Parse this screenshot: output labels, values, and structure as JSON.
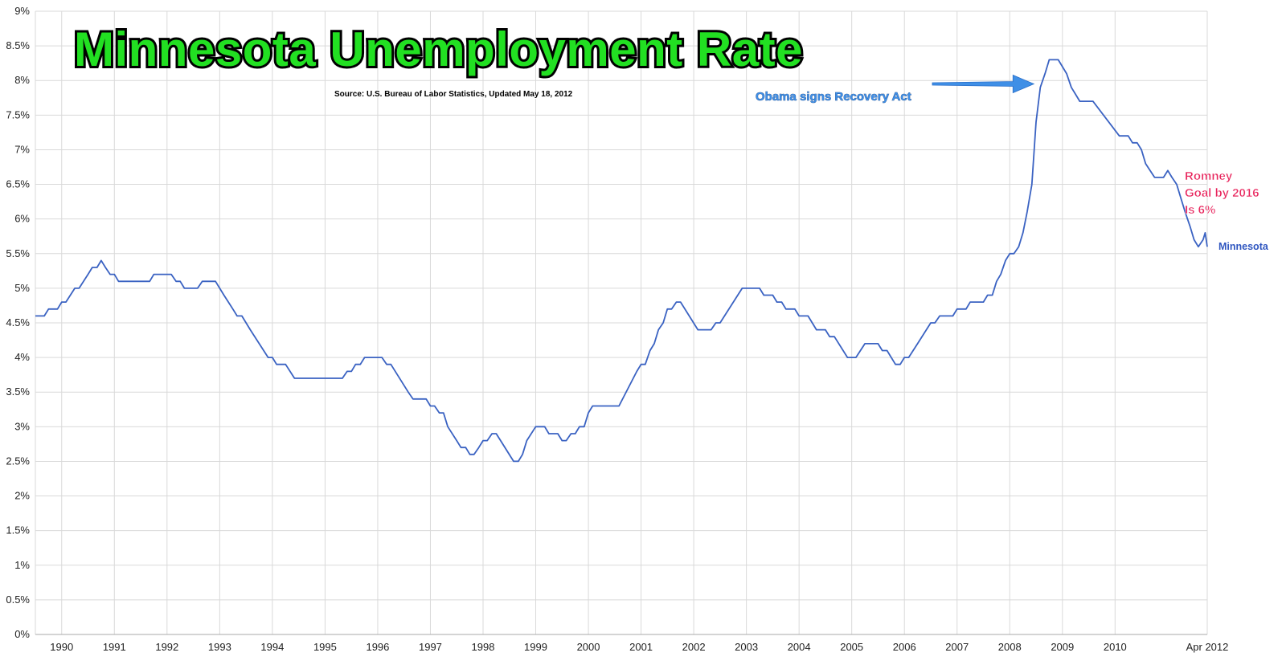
{
  "chart_data": {
    "type": "line",
    "title": "Minnesota Unemployment Rate",
    "subtitle": "Source:  U.S. Bureau of Labor Statistics, Updated May 18, 2012",
    "xlabel": "",
    "ylabel": "",
    "ylim": [
      0,
      9
    ],
    "y_ticks": [
      "0%",
      "0.5%",
      "1%",
      "1.5%",
      "2%",
      "2.5%",
      "3%",
      "3.5%",
      "4%",
      "4.5%",
      "5%",
      "5.5%",
      "6%",
      "6.5%",
      "7%",
      "7.5%",
      "8%",
      "8.5%",
      "9%"
    ],
    "x_ticks": [
      {
        "label": "1990",
        "x": 1990.5
      },
      {
        "label": "1991",
        "x": 1991.5
      },
      {
        "label": "1992",
        "x": 1992.5
      },
      {
        "label": "1993",
        "x": 1993.5
      },
      {
        "label": "1994",
        "x": 1994.5
      },
      {
        "label": "1995",
        "x": 1995.5
      },
      {
        "label": "1996",
        "x": 1996.5
      },
      {
        "label": "1997",
        "x": 1997.5
      },
      {
        "label": "1998",
        "x": 1998.5
      },
      {
        "label": "1999",
        "x": 1999.5
      },
      {
        "label": "2000",
        "x": 2000.5
      },
      {
        "label": "2001",
        "x": 2001.5
      },
      {
        "label": "2002",
        "x": 2002.5
      },
      {
        "label": "2003",
        "x": 2003.5
      },
      {
        "label": "2004",
        "x": 2004.5
      },
      {
        "label": "2005",
        "x": 2005.5
      },
      {
        "label": "2006",
        "x": 2006.5
      },
      {
        "label": "2007",
        "x": 2007.5
      },
      {
        "label": "2008",
        "x": 2008.5
      },
      {
        "label": "2009",
        "x": 2009.5
      },
      {
        "label": "2010",
        "x": 2010.5
      },
      {
        "label": "Apr 2012",
        "x": 2012.25
      }
    ],
    "x_range": [
      1990,
      2012.25
    ],
    "grid": true,
    "legend": "none",
    "series": [
      {
        "name": "Minnesota",
        "color": "#3a62c2",
        "points": [
          [
            1990.0,
            4.6
          ],
          [
            1990.17,
            4.6
          ],
          [
            1990.25,
            4.7
          ],
          [
            1990.42,
            4.7
          ],
          [
            1990.5,
            4.8
          ],
          [
            1990.58,
            4.8
          ],
          [
            1990.75,
            5.0
          ],
          [
            1990.83,
            5.0
          ],
          [
            1991.0,
            5.2
          ],
          [
            1991.08,
            5.3
          ],
          [
            1991.17,
            5.3
          ],
          [
            1991.25,
            5.4
          ],
          [
            1991.33,
            5.3
          ],
          [
            1991.42,
            5.2
          ],
          [
            1991.5,
            5.2
          ],
          [
            1991.58,
            5.1
          ],
          [
            1992.17,
            5.1
          ],
          [
            1992.25,
            5.2
          ],
          [
            1992.58,
            5.2
          ],
          [
            1992.67,
            5.1
          ],
          [
            1992.75,
            5.1
          ],
          [
            1992.83,
            5.0
          ],
          [
            1993.08,
            5.0
          ],
          [
            1993.17,
            5.1
          ],
          [
            1993.42,
            5.1
          ],
          [
            1993.58,
            4.9
          ],
          [
            1993.75,
            4.7
          ],
          [
            1993.83,
            4.6
          ],
          [
            1993.92,
            4.6
          ],
          [
            1994.08,
            4.4
          ],
          [
            1994.25,
            4.2
          ],
          [
            1994.42,
            4.0
          ],
          [
            1994.5,
            4.0
          ],
          [
            1994.58,
            3.9
          ],
          [
            1994.75,
            3.9
          ],
          [
            1994.92,
            3.7
          ],
          [
            1995.83,
            3.7
          ],
          [
            1995.92,
            3.8
          ],
          [
            1996.0,
            3.8
          ],
          [
            1996.08,
            3.9
          ],
          [
            1996.17,
            3.9
          ],
          [
            1996.25,
            4.0
          ],
          [
            1996.58,
            4.0
          ],
          [
            1996.67,
            3.9
          ],
          [
            1996.75,
            3.9
          ],
          [
            1997.08,
            3.5
          ],
          [
            1997.17,
            3.4
          ],
          [
            1997.42,
            3.4
          ],
          [
            1997.5,
            3.3
          ],
          [
            1997.58,
            3.3
          ],
          [
            1997.67,
            3.2
          ],
          [
            1997.75,
            3.2
          ],
          [
            1997.83,
            3.0
          ],
          [
            1998.0,
            2.8
          ],
          [
            1998.08,
            2.7
          ],
          [
            1998.17,
            2.7
          ],
          [
            1998.25,
            2.6
          ],
          [
            1998.33,
            2.6
          ],
          [
            1998.42,
            2.7
          ],
          [
            1998.5,
            2.8
          ],
          [
            1998.58,
            2.8
          ],
          [
            1998.67,
            2.9
          ],
          [
            1998.75,
            2.9
          ],
          [
            1999.08,
            2.5
          ],
          [
            1999.17,
            2.5
          ],
          [
            1999.25,
            2.6
          ],
          [
            1999.33,
            2.8
          ],
          [
            1999.5,
            3.0
          ],
          [
            1999.67,
            3.0
          ],
          [
            1999.75,
            2.9
          ],
          [
            1999.92,
            2.9
          ],
          [
            2000.0,
            2.8
          ],
          [
            2000.08,
            2.8
          ],
          [
            2000.17,
            2.9
          ],
          [
            2000.25,
            2.9
          ],
          [
            2000.33,
            3.0
          ],
          [
            2000.42,
            3.0
          ],
          [
            2000.5,
            3.2
          ],
          [
            2000.58,
            3.3
          ],
          [
            2001.08,
            3.3
          ],
          [
            2001.42,
            3.8
          ],
          [
            2001.5,
            3.9
          ],
          [
            2001.58,
            3.9
          ],
          [
            2001.67,
            4.1
          ],
          [
            2001.75,
            4.2
          ],
          [
            2001.83,
            4.4
          ],
          [
            2001.92,
            4.5
          ],
          [
            2002.0,
            4.7
          ],
          [
            2002.08,
            4.7
          ],
          [
            2002.17,
            4.8
          ],
          [
            2002.25,
            4.8
          ],
          [
            2002.58,
            4.4
          ],
          [
            2002.83,
            4.4
          ],
          [
            2002.92,
            4.5
          ],
          [
            2003.0,
            4.5
          ],
          [
            2003.42,
            5.0
          ],
          [
            2003.75,
            5.0
          ],
          [
            2003.83,
            4.9
          ],
          [
            2004.0,
            4.9
          ],
          [
            2004.08,
            4.8
          ],
          [
            2004.17,
            4.8
          ],
          [
            2004.25,
            4.7
          ],
          [
            2004.42,
            4.7
          ],
          [
            2004.5,
            4.6
          ],
          [
            2004.67,
            4.6
          ],
          [
            2004.83,
            4.4
          ],
          [
            2005.0,
            4.4
          ],
          [
            2005.08,
            4.3
          ],
          [
            2005.17,
            4.3
          ],
          [
            2005.42,
            4.0
          ],
          [
            2005.58,
            4.0
          ],
          [
            2005.75,
            4.2
          ],
          [
            2006.0,
            4.2
          ],
          [
            2006.08,
            4.1
          ],
          [
            2006.17,
            4.1
          ],
          [
            2006.33,
            3.9
          ],
          [
            2006.42,
            3.9
          ],
          [
            2006.5,
            4.0
          ],
          [
            2006.58,
            4.0
          ],
          [
            2006.75,
            4.2
          ],
          [
            2007.0,
            4.5
          ],
          [
            2007.08,
            4.5
          ],
          [
            2007.17,
            4.6
          ],
          [
            2007.42,
            4.6
          ],
          [
            2007.5,
            4.7
          ],
          [
            2007.67,
            4.7
          ],
          [
            2007.75,
            4.8
          ],
          [
            2008.0,
            4.8
          ],
          [
            2008.08,
            4.9
          ],
          [
            2008.17,
            4.9
          ],
          [
            2008.25,
            5.1
          ],
          [
            2008.33,
            5.2
          ],
          [
            2008.42,
            5.4
          ],
          [
            2008.5,
            5.5
          ],
          [
            2008.58,
            5.5
          ],
          [
            2008.67,
            5.6
          ],
          [
            2008.75,
            5.8
          ],
          [
            2008.83,
            6.1
          ],
          [
            2008.92,
            6.5
          ],
          [
            2009.0,
            7.4
          ],
          [
            2009.08,
            7.9
          ],
          [
            2009.17,
            8.1
          ],
          [
            2009.25,
            8.3
          ],
          [
            2009.42,
            8.3
          ],
          [
            2009.5,
            8.2
          ],
          [
            2009.58,
            8.1
          ],
          [
            2009.67,
            7.9
          ],
          [
            2009.75,
            7.8
          ],
          [
            2009.83,
            7.7
          ],
          [
            2010.08,
            7.7
          ],
          [
            2010.58,
            7.2
          ],
          [
            2010.75,
            7.2
          ],
          [
            2010.83,
            7.1
          ],
          [
            2010.92,
            7.1
          ],
          [
            2011.0,
            7.0
          ],
          [
            2011.08,
            6.8
          ],
          [
            2011.25,
            6.6
          ],
          [
            2011.42,
            6.6
          ],
          [
            2011.5,
            6.7
          ],
          [
            2011.58,
            6.6
          ],
          [
            2011.67,
            6.5
          ],
          [
            2011.75,
            6.3
          ],
          [
            2011.83,
            6.1
          ],
          [
            2011.92,
            5.9
          ],
          [
            2012.0,
            5.7
          ],
          [
            2012.08,
            5.6
          ],
          [
            2012.17,
            5.7
          ],
          [
            2012.21,
            5.8
          ],
          [
            2012.25,
            5.6
          ]
        ]
      }
    ],
    "annotations": {
      "obama": {
        "text": "Obama signs Recovery Act",
        "x": 2009.08,
        "y": 7.95
      },
      "romney": {
        "lines": [
          "Romney",
          "Goal by 2016",
          "Is 6%"
        ]
      }
    }
  }
}
